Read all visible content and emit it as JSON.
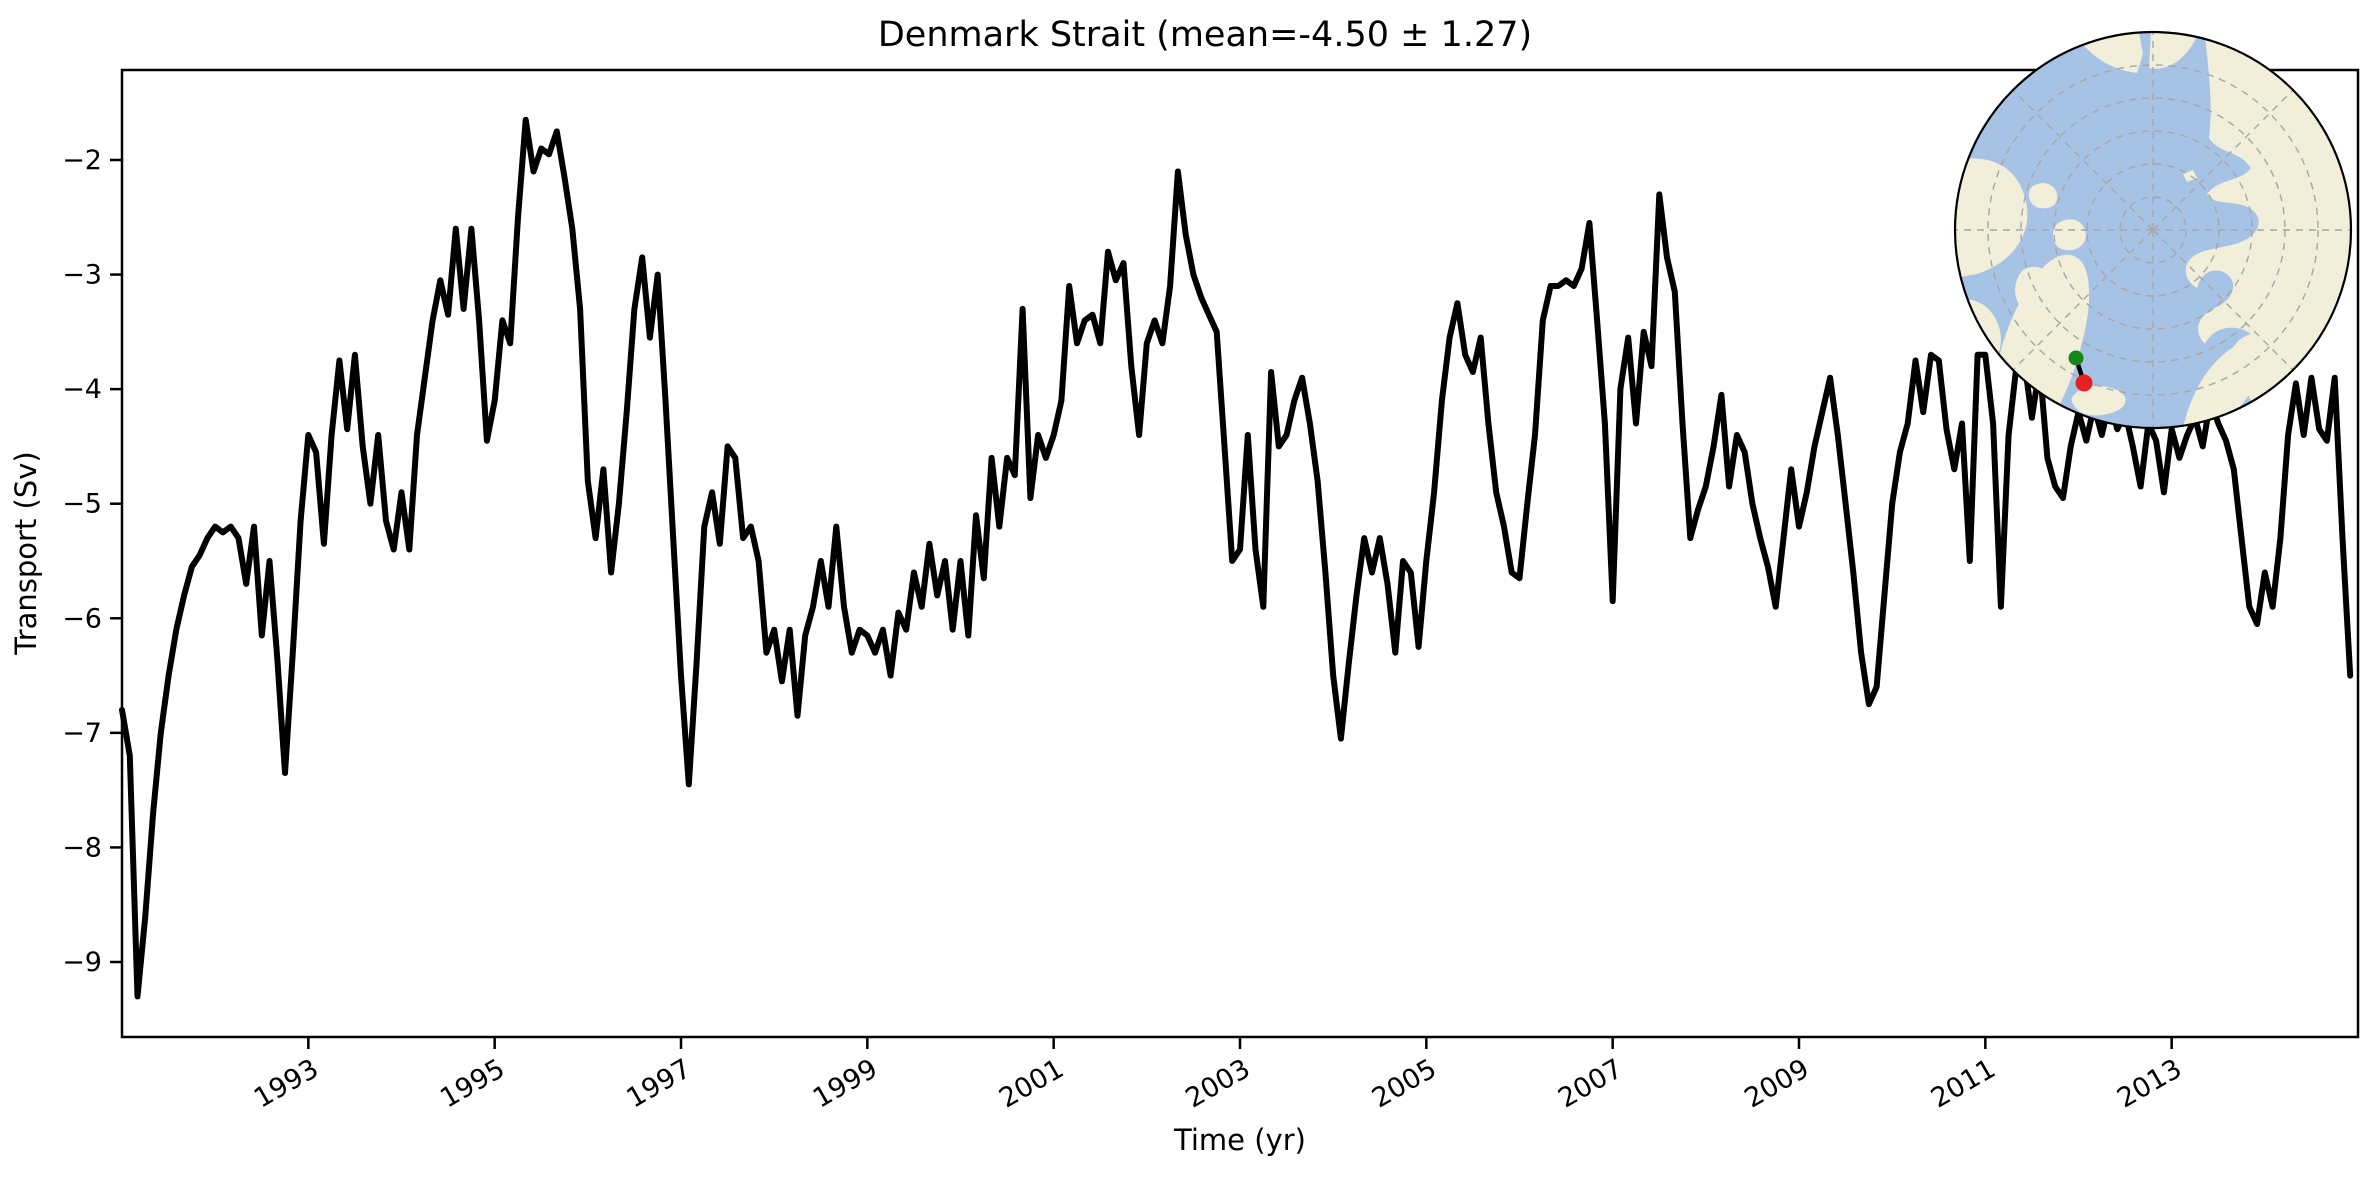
{
  "title": "Denmark Strait (mean=-4.50 ± 1.27)",
  "axes": {
    "xlabel": "Time (yr)",
    "ylabel": "Transport (Sv)",
    "x_ticks": [
      1993,
      1995,
      1997,
      1999,
      2001,
      2003,
      2005,
      2007,
      2009,
      2011,
      2013
    ],
    "y_ticks": [
      -9,
      -8,
      -7,
      -6,
      -5,
      -4,
      -3,
      -2
    ],
    "xlim": [
      1991.0,
      2015.0
    ],
    "ylim": [
      -9.6546,
      -1.2145
    ],
    "frame_color": "#000000"
  },
  "chart_data": {
    "type": "line",
    "title": "Denmark Strait (mean=-4.50 ± 1.27)",
    "xlabel": "Time (yr)",
    "ylabel": "Transport (Sv)",
    "mean": -4.5,
    "std": 1.27,
    "unit": "Sv",
    "line_color": "#000000",
    "x_start_year": 1991.0,
    "x_step_years": 0.0833333,
    "xlim": [
      1991.0,
      2015.0
    ],
    "ylim": [
      -9.6546,
      -1.2145
    ],
    "grid": false,
    "values": [
      -6.8,
      -7.2,
      -9.3,
      -8.6,
      -7.7,
      -7.0,
      -6.5,
      -6.1,
      -5.8,
      -5.55,
      -5.45,
      -5.3,
      -5.2,
      -5.25,
      -5.2,
      -5.3,
      -5.7,
      -5.2,
      -6.15,
      -5.5,
      -6.35,
      -7.35,
      -6.3,
      -5.15,
      -4.4,
      -4.55,
      -5.35,
      -4.4,
      -3.75,
      -4.35,
      -3.7,
      -4.5,
      -5.0,
      -4.4,
      -5.15,
      -5.4,
      -4.9,
      -5.4,
      -4.4,
      -3.9,
      -3.4,
      -3.05,
      -3.35,
      -2.6,
      -3.3,
      -2.6,
      -3.4,
      -4.45,
      -4.1,
      -3.4,
      -3.6,
      -2.5,
      -1.65,
      -2.1,
      -1.9,
      -1.95,
      -1.75,
      -2.15,
      -2.6,
      -3.3,
      -4.8,
      -5.3,
      -4.7,
      -5.6,
      -5.0,
      -4.2,
      -3.3,
      -2.85,
      -3.55,
      -3.0,
      -4.1,
      -5.3,
      -6.5,
      -7.45,
      -6.4,
      -5.2,
      -4.9,
      -5.35,
      -4.5,
      -4.6,
      -5.3,
      -5.2,
      -5.5,
      -6.3,
      -6.1,
      -6.55,
      -6.1,
      -6.85,
      -6.15,
      -5.9,
      -5.5,
      -5.9,
      -5.2,
      -5.9,
      -6.3,
      -6.1,
      -6.15,
      -6.3,
      -6.1,
      -6.5,
      -5.95,
      -6.1,
      -5.6,
      -5.9,
      -5.35,
      -5.8,
      -5.5,
      -6.1,
      -5.5,
      -6.15,
      -5.1,
      -5.65,
      -4.6,
      -5.2,
      -4.6,
      -4.75,
      -3.3,
      -4.95,
      -4.4,
      -4.6,
      -4.4,
      -4.1,
      -3.1,
      -3.6,
      -3.4,
      -3.35,
      -3.6,
      -2.8,
      -3.05,
      -2.9,
      -3.8,
      -4.4,
      -3.6,
      -3.4,
      -3.6,
      -3.1,
      -2.1,
      -2.65,
      -3.0,
      -3.2,
      -3.35,
      -3.5,
      -4.5,
      -5.5,
      -5.4,
      -4.4,
      -5.4,
      -5.9,
      -3.85,
      -4.5,
      -4.4,
      -4.1,
      -3.9,
      -4.3,
      -4.8,
      -5.6,
      -6.5,
      -7.05,
      -6.4,
      -5.8,
      -5.3,
      -5.6,
      -5.3,
      -5.7,
      -6.3,
      -5.5,
      -5.6,
      -6.25,
      -5.5,
      -4.9,
      -4.1,
      -3.55,
      -3.25,
      -3.7,
      -3.85,
      -3.55,
      -4.3,
      -4.9,
      -5.2,
      -5.6,
      -5.65,
      -5.0,
      -4.4,
      -3.4,
      -3.1,
      -3.1,
      -3.05,
      -3.1,
      -2.95,
      -2.55,
      -3.4,
      -4.3,
      -5.85,
      -4.0,
      -3.55,
      -4.3,
      -3.5,
      -3.8,
      -2.3,
      -2.85,
      -3.15,
      -4.3,
      -5.3,
      -5.05,
      -4.85,
      -4.5,
      -4.05,
      -4.85,
      -4.4,
      -4.55,
      -5.0,
      -5.3,
      -5.55,
      -5.9,
      -5.3,
      -4.7,
      -5.2,
      -4.9,
      -4.5,
      -4.2,
      -3.9,
      -4.4,
      -5.0,
      -5.6,
      -6.3,
      -6.75,
      -6.6,
      -5.8,
      -5.0,
      -4.55,
      -4.3,
      -3.75,
      -4.2,
      -3.7,
      -3.75,
      -4.35,
      -4.7,
      -4.3,
      -5.5,
      -3.7,
      -3.7,
      -4.3,
      -5.9,
      -4.4,
      -3.8,
      -3.75,
      -4.25,
      -3.8,
      -4.6,
      -4.85,
      -4.95,
      -4.5,
      -4.2,
      -4.45,
      -4.15,
      -4.4,
      -4.1,
      -4.35,
      -4.2,
      -4.5,
      -4.85,
      -4.3,
      -4.45,
      -4.9,
      -4.35,
      -4.6,
      -4.4,
      -4.25,
      -4.5,
      -4.1,
      -4.3,
      -4.45,
      -4.7,
      -5.3,
      -5.9,
      -6.05,
      -5.6,
      -5.9,
      -5.3,
      -4.4,
      -3.95,
      -4.4,
      -3.9,
      -4.35,
      -4.45,
      -3.9,
      -5.3,
      -6.5
    ]
  },
  "inset_map": {
    "projection": "north-polar",
    "ocean_color": "#a6c2e4",
    "land_color": "#f1eed9",
    "graticule_color": "#a6a6a6",
    "border_color": "#000000",
    "section_line_color": "#000000",
    "section_start_color": "#16871b",
    "section_end_color": "#e32222"
  }
}
